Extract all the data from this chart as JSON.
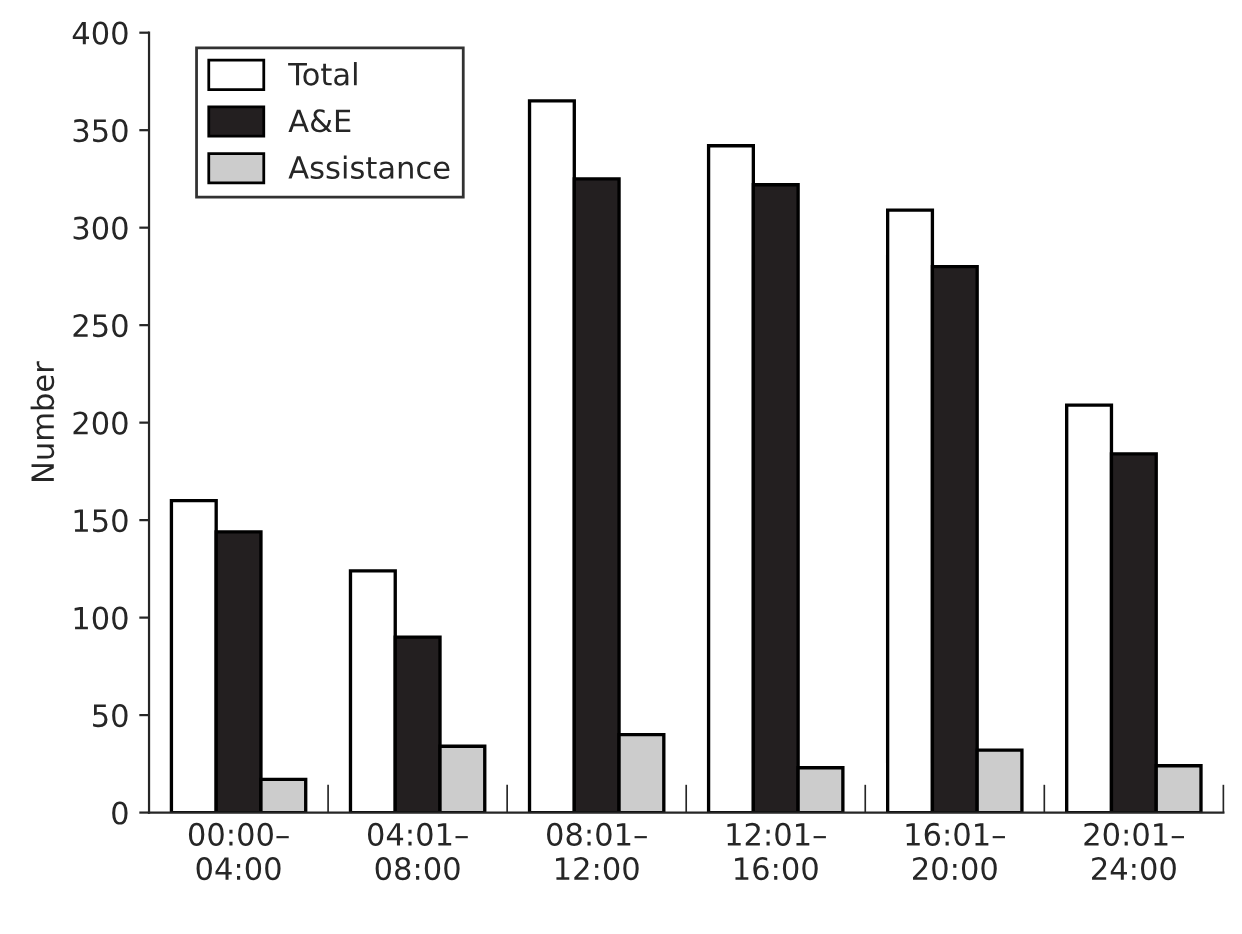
{
  "chart_data": {
    "type": "bar",
    "ylabel": "Number",
    "categories": [
      "00:00–\n04:00",
      "04:01–\n08:00",
      "08:01–\n12:00",
      "12:01–\n16:00",
      "16:01–\n20:00",
      "20:01–\n24:00"
    ],
    "series": [
      {
        "name": "Total",
        "color": "#ffffff",
        "values": [
          160,
          124,
          365,
          342,
          309,
          209
        ]
      },
      {
        "name": "A&E",
        "color": "#231f20",
        "values": [
          144,
          90,
          325,
          322,
          280,
          184
        ]
      },
      {
        "name": "Assistance",
        "color": "#cccccc",
        "values": [
          17,
          34,
          40,
          23,
          32,
          24
        ]
      }
    ],
    "ylim": [
      0,
      400
    ],
    "yticks": [
      0,
      50,
      100,
      150,
      200,
      250,
      300,
      350,
      400
    ],
    "legend": "top left",
    "grid": false
  }
}
